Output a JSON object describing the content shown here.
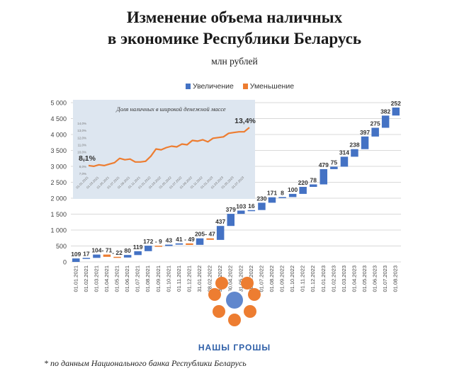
{
  "title_line1": "Изменение объема наличных",
  "title_line2": "в экономике Республики Беларусь",
  "subtitle": "млн рублей",
  "legend": {
    "increase": "Увеличение",
    "decrease": "Уменьшение"
  },
  "logo_text": "НАШЫ ГРОШЫ",
  "footnote": "* по данным Национального банка Республики Беларусь",
  "colors": {
    "increase": "#4472c4",
    "decrease": "#ed7d31",
    "inset_bg": "#dde6f0",
    "inset_line": "#ed7d31"
  },
  "chart_data": [
    {
      "type": "waterfall",
      "xlabel": "",
      "ylabel": "",
      "ylim": [
        0,
        5000
      ],
      "yticks": [
        0,
        500,
        1000,
        1500,
        2000,
        2500,
        3000,
        3500,
        4000,
        4500,
        5000
      ],
      "ytick_labels": [
        "0",
        "500",
        "1 000",
        "1 500",
        "2 000",
        "2 500",
        "3 000",
        "3 500",
        "4 000",
        "4 500",
        "5 000"
      ],
      "grid": true,
      "legend_position": "top",
      "categories": [
        "01.01.2021",
        "01.02.2021",
        "01.03.2021",
        "01.04.2021",
        "01.05.2021",
        "01.06.2021",
        "01.07.2021",
        "01.08.2021",
        "01.09.2021",
        "01.10.2021",
        "01.11.2021",
        "01.12.2021",
        "31.01.2022",
        "28.02.2022",
        "31.03.2022",
        "30.04.2022",
        "31.05.2022",
        "30.06.2022",
        "01.07.2022",
        "01.08.2022",
        "01.09.2022",
        "01.10.2022",
        "01.11.2022",
        "01.12.2022",
        "01.01.2023",
        "01.02.2023",
        "01.03.2023",
        "01.04.2023",
        "01.05.2023",
        "01.06.2023",
        "01.07.2023",
        "01.08.2023"
      ],
      "values": [
        109,
        17,
        104,
        -71,
        -22,
        80,
        119,
        172,
        -9,
        43,
        41,
        -49,
        205,
        -47,
        437,
        379,
        103,
        16,
        230,
        171,
        8,
        100,
        220,
        78,
        479,
        75,
        314,
        238,
        397,
        275,
        382,
        252
      ],
      "data_labels": [
        "109",
        "17",
        "104",
        "- 71",
        "- 22",
        "80",
        "119",
        "172",
        "- 9",
        "43",
        "41",
        "- 49",
        "205",
        "- 47",
        "437",
        "379",
        "103",
        "16",
        "230",
        "171",
        "8",
        "100",
        "220",
        "78",
        "479",
        "75",
        "314",
        "238",
        "397",
        "275",
        "382",
        "252"
      ]
    },
    {
      "type": "line",
      "title": "Доля наличных в широкой денежной массе",
      "ylim": [
        7.0,
        14.5
      ],
      "yticks": [
        7.0,
        8.0,
        9.0,
        10.0,
        11.0,
        12.0,
        13.0,
        14.0
      ],
      "ytick_labels": [
        "7,0%",
        "8,0%",
        "9,0%",
        "10,0%",
        "11,0%",
        "12,0%",
        "13,0%",
        "14,0%"
      ],
      "x": [
        "01.01.2021",
        "01.02.2021",
        "01.03.2021",
        "01.04.2021",
        "01.05.2021",
        "01.06.2021",
        "01.07.2021",
        "01.08.2021",
        "01.09.2021",
        "01.10.2021",
        "01.11.2021",
        "01.12.2021",
        "01.01.2022",
        "01.02.2022",
        "01.03.2022",
        "01.04.2022",
        "01.05.2022",
        "01.06.2022",
        "01.07.2022",
        "01.08.2022",
        "01.09.2022",
        "01.10.2022",
        "01.11.2022",
        "01.12.2022",
        "01.01.2023",
        "01.02.2023",
        "01.03.2023",
        "01.04.2023",
        "01.05.2023",
        "01.06.2023",
        "01.07.2023",
        "01.08.2023"
      ],
      "xtick_labels": [
        "01.01.2021",
        "01.03.2021",
        "01.05.2021",
        "01.07.2021",
        "01.09.2021",
        "01.11.2021",
        "01.01.2022",
        "01.03.2022",
        "01.05.2022",
        "01.07.2022",
        "01.09.2022",
        "01.11.2022",
        "01.01.2023",
        "01.03.2023",
        "01.05.2023",
        "01.07.2023"
      ],
      "values": [
        8.1,
        8.0,
        8.2,
        8.1,
        8.3,
        8.5,
        9.1,
        8.9,
        9.0,
        8.6,
        8.6,
        8.7,
        9.4,
        10.4,
        10.3,
        10.6,
        10.8,
        10.7,
        11.1,
        11.0,
        11.6,
        11.5,
        11.7,
        11.4,
        11.9,
        12.0,
        12.1,
        12.6,
        12.7,
        12.8,
        12.8,
        13.4
      ],
      "annotations": [
        "8,1%",
        "13,4%"
      ]
    }
  ]
}
